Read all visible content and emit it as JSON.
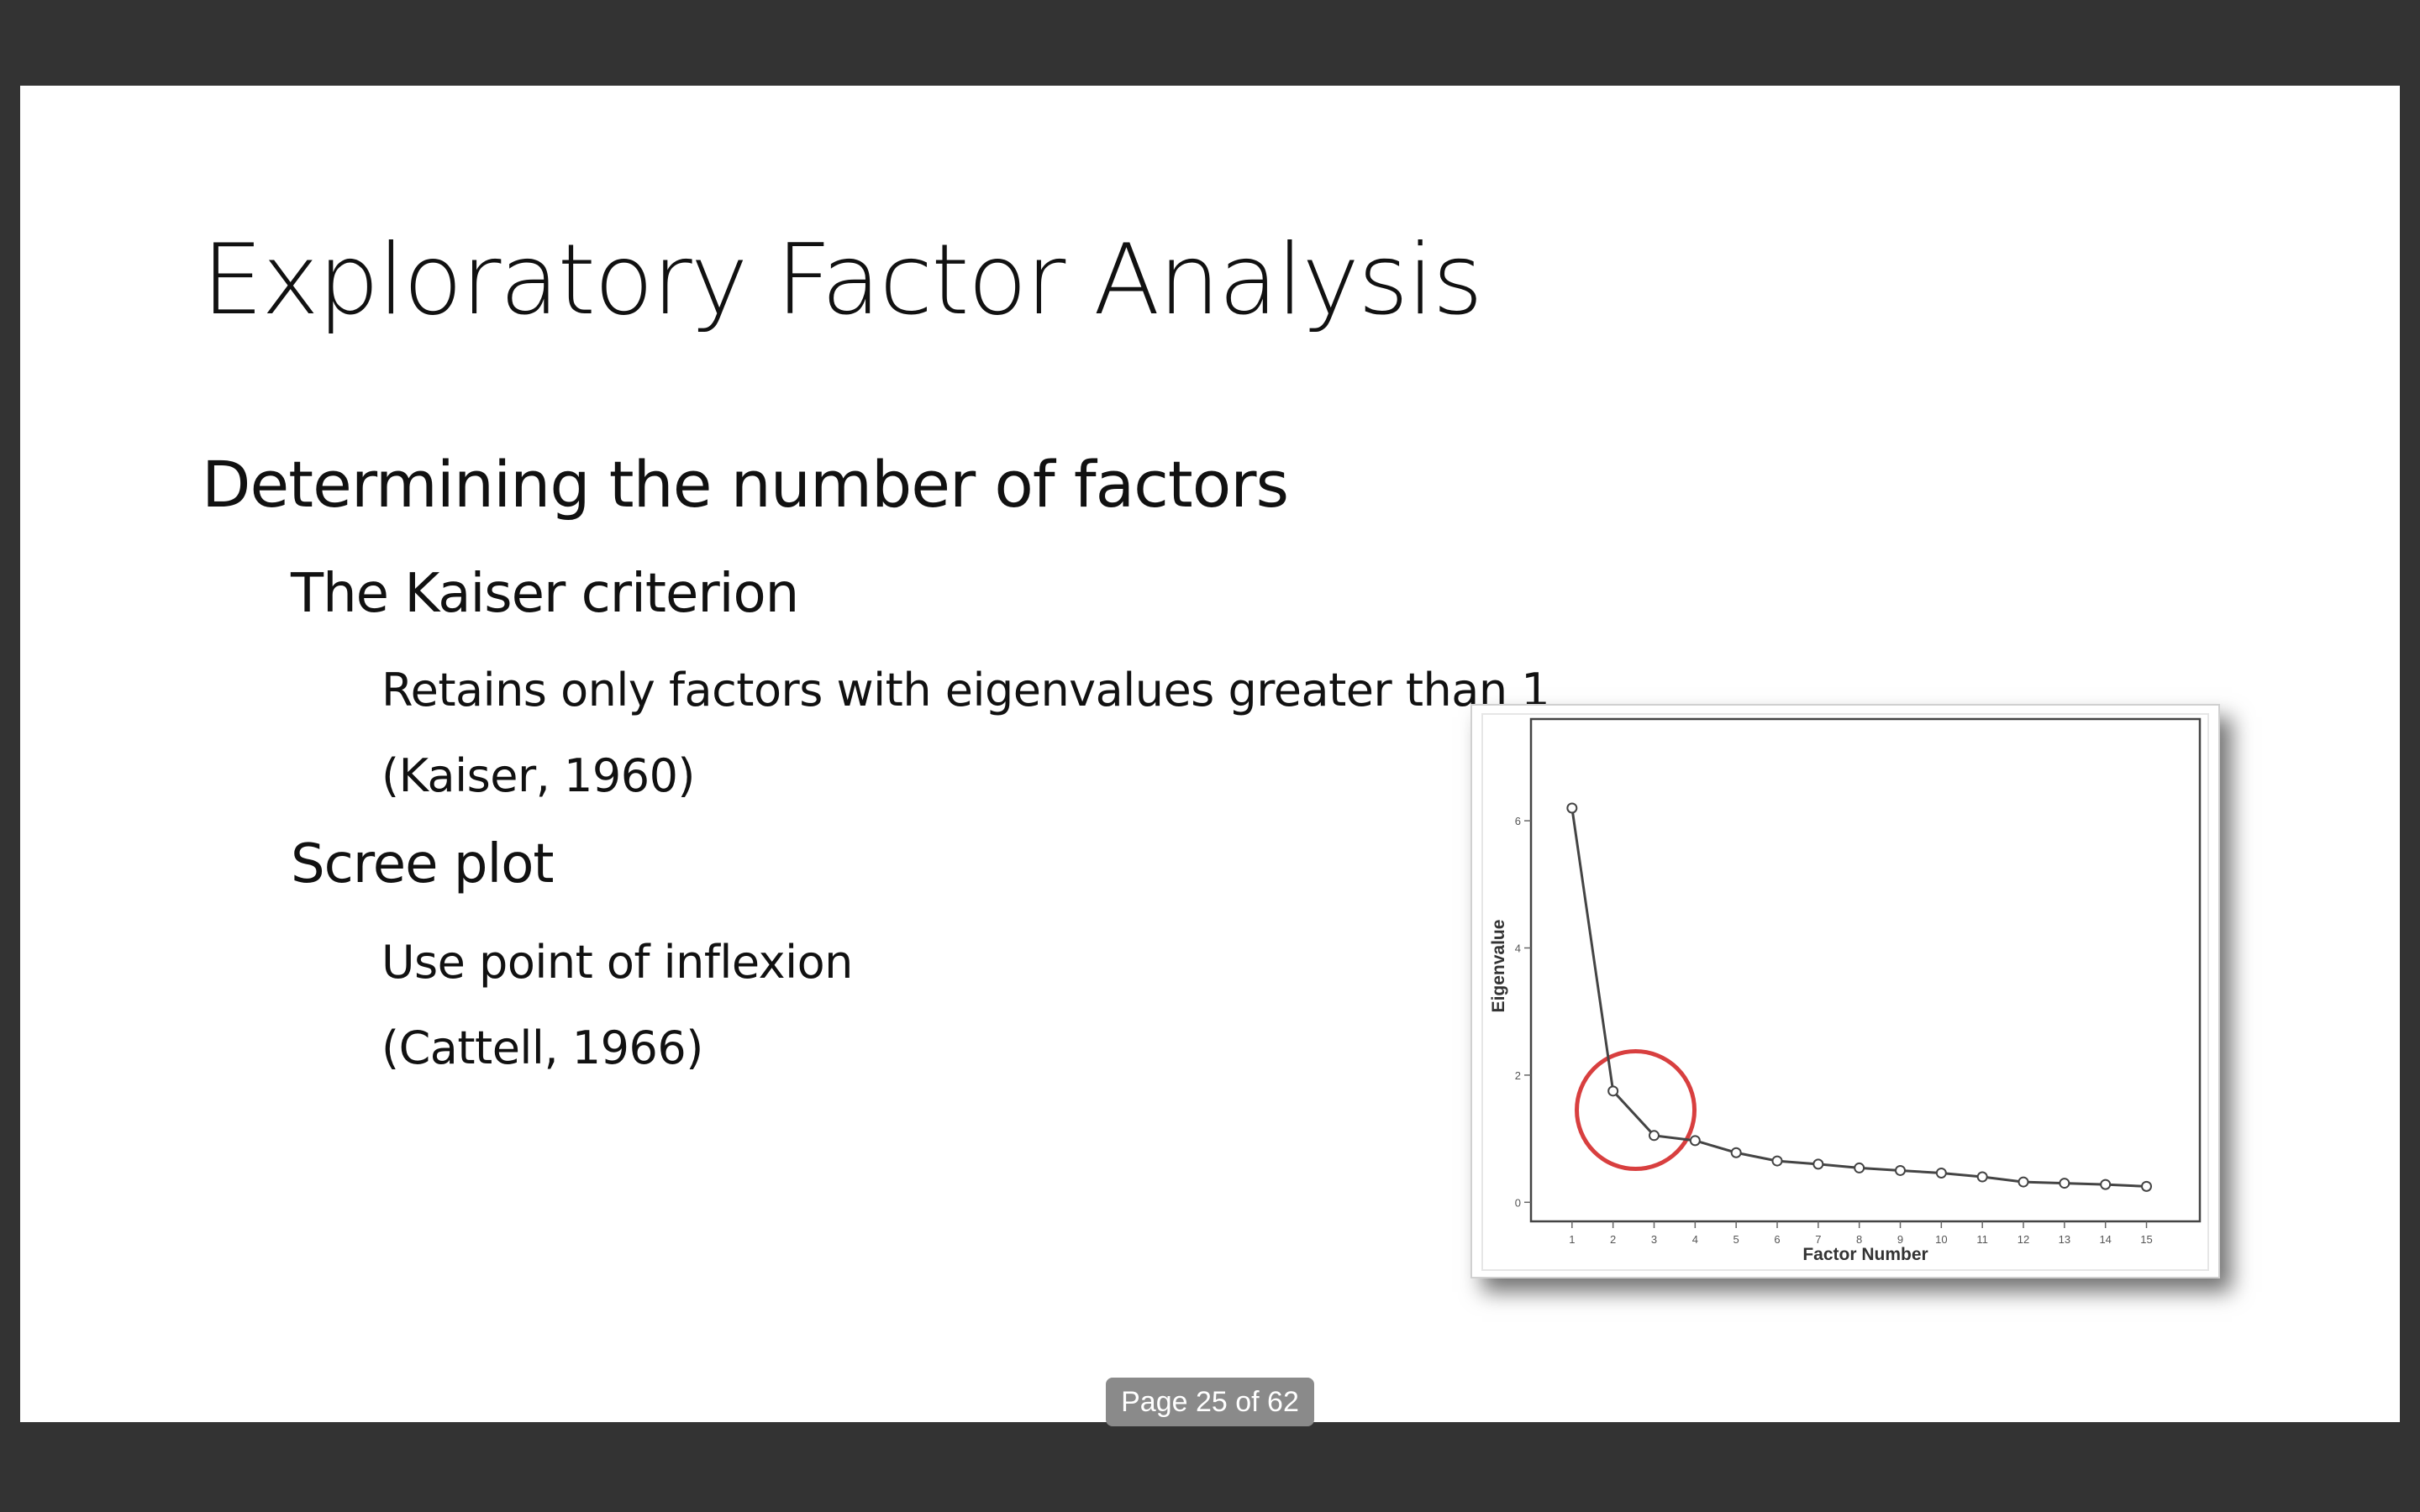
{
  "slide": {
    "title": "Exploratory Factor Analysis",
    "heading": "Determining the number of factors",
    "section1": {
      "label": "The Kaiser criterion",
      "line1": "Retains only factors with eigenvalues greater than 1",
      "line2": "(Kaiser, 1960)"
    },
    "section2": {
      "label": "Scree plot",
      "line1": "Use point of inflexion",
      "line2": "(Cattell, 1966)"
    }
  },
  "viewer": {
    "page_indicator": "Page 25 of 62",
    "page_current": 25,
    "page_total": 62,
    "background_color": "#333333"
  },
  "chart_data": {
    "type": "line",
    "title": "",
    "xlabel": "Factor Number",
    "ylabel": "Eigenvalue",
    "x": [
      1,
      2,
      3,
      4,
      5,
      6,
      7,
      8,
      9,
      10,
      11,
      12,
      13,
      14,
      15
    ],
    "y": [
      6.2,
      1.75,
      1.05,
      0.97,
      0.78,
      0.65,
      0.6,
      0.54,
      0.5,
      0.46,
      0.4,
      0.32,
      0.3,
      0.28,
      0.25
    ],
    "yticks": [
      0,
      2,
      4,
      6
    ],
    "ylim": [
      -0.3,
      7.6
    ],
    "xlim": [
      0,
      16.3
    ],
    "grid": false,
    "marker": "circle",
    "line_color": "#444444",
    "annotation": {
      "shape": "circle",
      "color": "#d42a2a",
      "center_x": 2.55,
      "center_y": 1.45
    }
  }
}
